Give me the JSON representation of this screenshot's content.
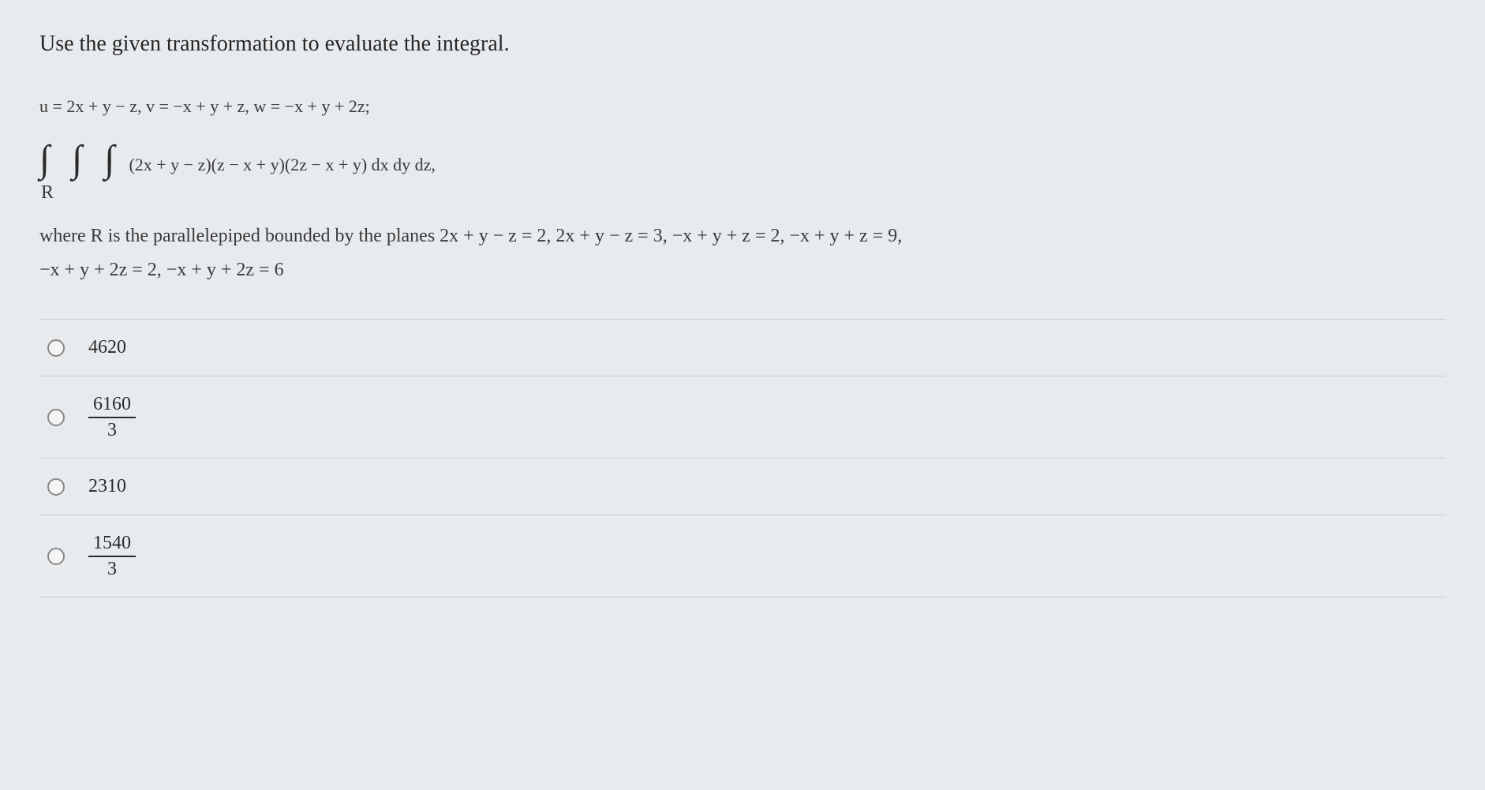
{
  "question": {
    "prompt": "Use the given transformation to evaluate the integral.",
    "transformation_line": "u = 2x + y − z,   v = −x + y + z,   w = −x + y + 2z;",
    "integral_symbols": "∫ ∫ ∫",
    "integrand": "(2x + y − z)(z − x + y)(2z − x + y) dx dy dz,",
    "region_label": "R",
    "description_part1": "where R is the parallelepiped bounded by the planes 2x + y − z = 2,  2x + y − z = 3,  −x + y + z = 2,  −x + y + z = 9,",
    "description_part2": "−x + y + 2z = 2,  −x + y + 2z = 6"
  },
  "options": [
    {
      "type": "plain",
      "value": "4620"
    },
    {
      "type": "fraction",
      "numerator": "6160",
      "denominator": "3"
    },
    {
      "type": "plain",
      "value": "2310"
    },
    {
      "type": "fraction",
      "numerator": "1540",
      "denominator": "3"
    }
  ],
  "styling": {
    "background_color": "#e8ebee",
    "text_color": "#2a2a2a",
    "border_color": "#c8cbce",
    "radio_border_color": "#888888",
    "prompt_fontsize": 28,
    "math_fontsize": 22,
    "description_fontsize": 24,
    "option_fontsize": 24,
    "integral_fontsize": 48,
    "font_family": "Times New Roman"
  }
}
